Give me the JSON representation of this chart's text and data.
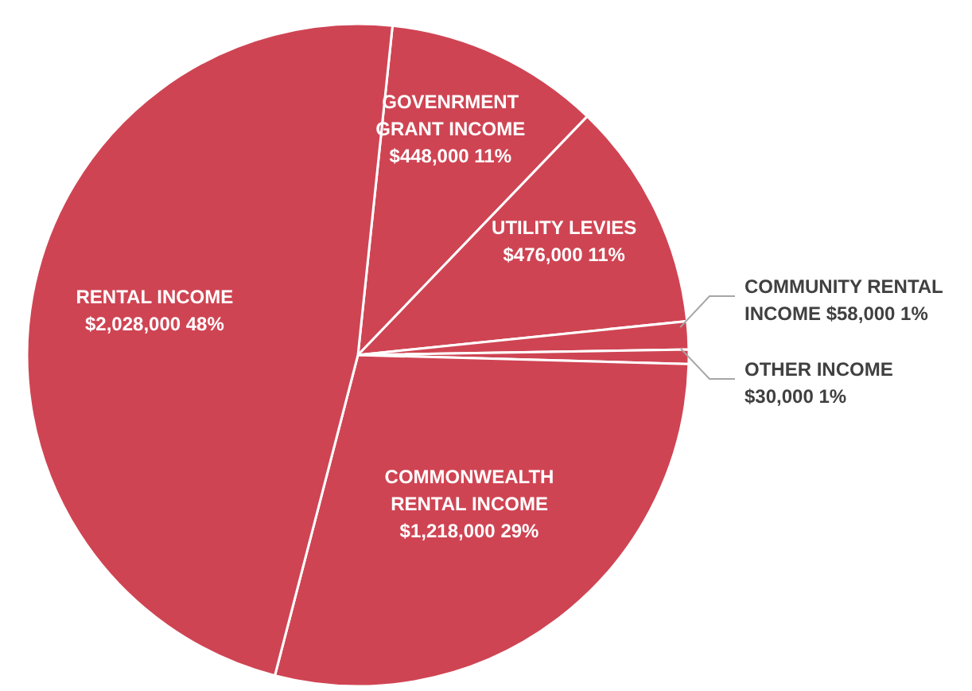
{
  "chart_data": {
    "type": "pie",
    "categories": [
      "GOVENRMENT GRANT INCOME",
      "UTILITY LEVIES",
      "COMMUNITY RENTAL INCOME",
      "OTHER INCOME",
      "COMMONWEALTH RENTAL INCOME",
      "RENTAL INCOME"
    ],
    "values": [
      448000,
      476000,
      58000,
      30000,
      1218000,
      2028000
    ],
    "value_labels": [
      "$448,000 11%",
      "$476,000  11%",
      "$58,000  1%",
      "$30,000  1%",
      "$1,218,000  29%",
      "$2,028,000  48%"
    ],
    "colors": [
      "#cf4453",
      "#cf4453",
      "#cf4453",
      "#cf4453",
      "#cf4453",
      "#cf4453"
    ],
    "legend": false
  }
}
